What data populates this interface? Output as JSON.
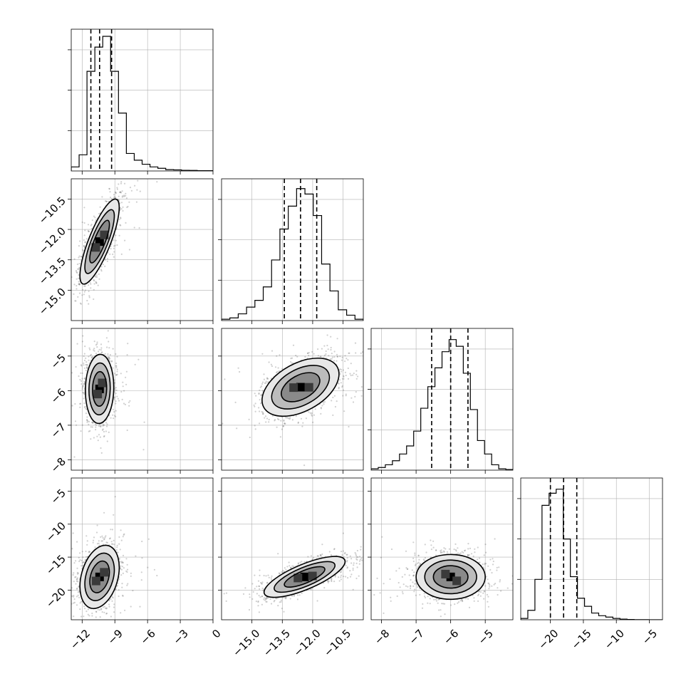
{
  "chart_data": {
    "type": "corner",
    "title": "",
    "parameters": [
      {
        "range": [
          -13.0,
          0.0
        ],
        "ticks": [
          -12,
          -9,
          -6,
          -3,
          0
        ],
        "tick_labels": [
          "−12",
          "−9",
          "−6",
          "−3",
          "0"
        ],
        "median": -10.4,
        "q16": -11.2,
        "q84": -9.3,
        "hist_counts": [
          0.03,
          0.12,
          0.74,
          0.92,
          1.0,
          0.74,
          0.43,
          0.13,
          0.08,
          0.05,
          0.03,
          0.02,
          0.01,
          0.008,
          0.005,
          0.004,
          0.002,
          0.002
        ]
      },
      {
        "range": [
          -16.5,
          -9.5
        ],
        "ticks": [
          -15.0,
          -13.5,
          -12.0,
          -10.5
        ],
        "tick_labels": [
          "−15.0",
          "−13.5",
          "−12.0",
          "−10.5"
        ],
        "median": -12.6,
        "q16": -13.4,
        "q84": -11.8,
        "hist_counts": [
          0.01,
          0.02,
          0.05,
          0.1,
          0.15,
          0.25,
          0.45,
          0.68,
          0.85,
          0.98,
          0.94,
          0.78,
          0.42,
          0.22,
          0.08,
          0.04,
          0.01
        ]
      },
      {
        "range": [
          -8.3,
          -4.2
        ],
        "ticks": [
          -8,
          -7,
          -6,
          -5
        ],
        "tick_labels": [
          "−8",
          "−7",
          "−6",
          "−5"
        ],
        "median": -6.0,
        "q16": -6.55,
        "q84": -5.5,
        "hist_counts": [
          0.01,
          0.02,
          0.04,
          0.07,
          0.12,
          0.18,
          0.29,
          0.46,
          0.62,
          0.76,
          0.88,
          0.97,
          0.92,
          0.72,
          0.45,
          0.22,
          0.12,
          0.04,
          0.01,
          0.005
        ]
      },
      {
        "range": [
          -24.5,
          -3.0
        ],
        "ticks": [
          -20,
          -15,
          -10,
          -5
        ],
        "tick_labels": [
          "−20",
          "−15",
          "−10",
          "−5"
        ],
        "median": -18.0,
        "q16": -20.0,
        "q84": -16.0,
        "hist_counts": [
          0.01,
          0.07,
          0.3,
          0.85,
          0.94,
          0.97,
          0.6,
          0.32,
          0.16,
          0.1,
          0.05,
          0.03,
          0.02,
          0.01,
          0.005,
          0.002,
          0.001,
          0.001,
          0.0,
          0.0
        ]
      }
    ],
    "pairs": [
      {
        "i": 1,
        "j": 0,
        "mean": [
          -10.4,
          -12.6
        ],
        "sd": [
          0.9,
          1.05
        ],
        "corr": 0.8,
        "cell": [
          0.25,
          0.3
        ]
      },
      {
        "i": 2,
        "j": 0,
        "mean": [
          -10.4,
          -5.95
        ],
        "sd": [
          0.65,
          0.5
        ],
        "corr": 0.05,
        "cell": [
          0.25,
          0.14
        ]
      },
      {
        "i": 2,
        "j": 1,
        "mean": [
          -12.6,
          -5.9
        ],
        "sd": [
          0.95,
          0.42
        ],
        "corr": 0.45,
        "cell": [
          0.3,
          0.14
        ]
      },
      {
        "i": 3,
        "j": 0,
        "mean": [
          -10.4,
          -18.0
        ],
        "sd": [
          0.9,
          2.4
        ],
        "corr": 0.3,
        "cell": [
          0.25,
          0.6
        ]
      },
      {
        "i": 3,
        "j": 1,
        "mean": [
          -12.4,
          -18.0
        ],
        "sd": [
          1.0,
          1.55
        ],
        "corr": 0.75,
        "cell": [
          0.3,
          0.6
        ]
      },
      {
        "i": 3,
        "j": 2,
        "mean": [
          -6.0,
          -18.0
        ],
        "sd": [
          0.5,
          1.7
        ],
        "corr": 0.0,
        "cell": [
          0.15,
          0.6
        ]
      }
    ],
    "contour_levels": [
      0.5,
      1.0,
      1.5,
      2.0
    ],
    "grid": true,
    "legend": "none"
  }
}
